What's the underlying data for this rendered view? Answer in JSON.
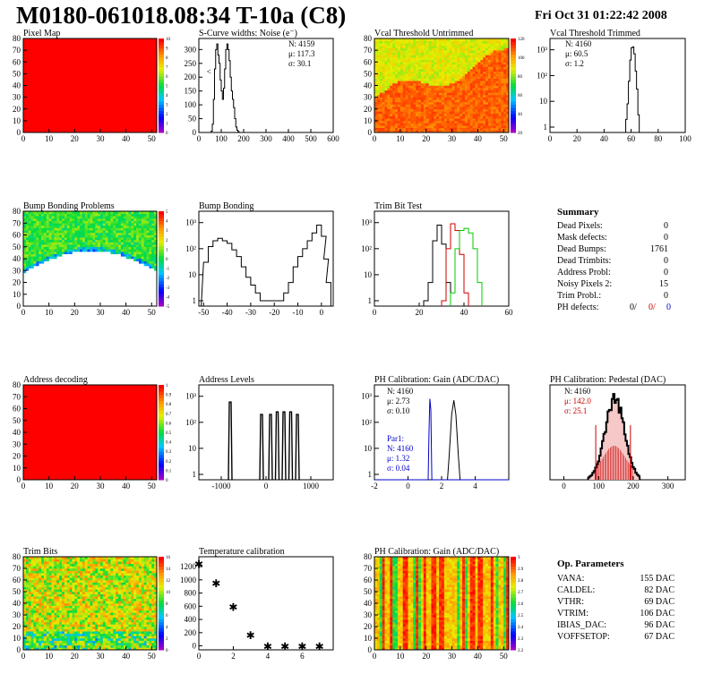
{
  "header": {
    "title": "M0180-061018.08:34 T-10a (C8)",
    "date": "Fri Oct 31 01:22:42 2008"
  },
  "summary": {
    "heading": "Summary",
    "rows": [
      {
        "label": "Dead Pixels:",
        "value": "0"
      },
      {
        "label": "Mask defects:",
        "value": "0"
      },
      {
        "label": "Dead Bumps:",
        "value": "1761"
      },
      {
        "label": "Dead Trimbits:",
        "value": "0"
      },
      {
        "label": "Address Probl:",
        "value": "0"
      },
      {
        "label": "Noisy Pixels 2:",
        "value": "15"
      },
      {
        "label": "Trim Probl.:",
        "value": "0"
      }
    ],
    "ph_label": "PH defects:",
    "ph_values": [
      "0/",
      "0/",
      "0"
    ],
    "ph_colors": [
      "#000000",
      "#cc0000",
      "#0000cc"
    ]
  },
  "params": {
    "heading": "Op. Parameters",
    "rows": [
      {
        "label": "VANA:",
        "value": "155 DAC"
      },
      {
        "label": "CALDEL:",
        "value": "82 DAC"
      },
      {
        "label": "VTHR:",
        "value": "69 DAC"
      },
      {
        "label": "VTRIM:",
        "value": "106 DAC"
      },
      {
        "label": "IBIAS_DAC:",
        "value": "96 DAC"
      },
      {
        "label": "VOFFSETOP:",
        "value": "67 DAC"
      }
    ]
  },
  "colors": {
    "red": "#ff0000",
    "green": "#00cc00",
    "blue": "#0000cc",
    "dark_red": "#cc0000"
  },
  "chart_data": [
    {
      "id": "pixelmap",
      "type": "heatmap",
      "title": "Pixel Map",
      "xticks": [
        "0",
        "10",
        "20",
        "30",
        "40",
        "50"
      ],
      "yticks": [
        "0",
        "10",
        "20",
        "30",
        "40",
        "50",
        "60",
        "70",
        "80"
      ],
      "xlim": [
        0,
        52
      ],
      "ylim": [
        0,
        80
      ],
      "fill": "uniform-red",
      "zticks": [
        "0",
        "1",
        "2",
        "3",
        "4",
        "5",
        "6",
        "7",
        "8",
        "9",
        "10"
      ]
    },
    {
      "id": "scurve",
      "type": "bar",
      "title": "S-Curve widths: Noise (e⁻)",
      "xticks": [
        "0",
        "100",
        "200",
        "300",
        "400",
        "500",
        "600"
      ],
      "yticks": [
        "0",
        "50",
        "100",
        "150",
        "200",
        "250",
        "300"
      ],
      "xlim": [
        0,
        600
      ],
      "ylim": [
        0,
        340
      ],
      "stats": [
        "N: 4159",
        "μ: 117.3",
        "σ: 30.1"
      ],
      "values": [
        [
          55,
          5
        ],
        [
          60,
          30
        ],
        [
          65,
          120
        ],
        [
          70,
          230
        ],
        [
          75,
          300
        ],
        [
          80,
          320
        ],
        [
          85,
          280
        ],
        [
          90,
          250
        ],
        [
          95,
          190
        ],
        [
          100,
          150
        ],
        [
          105,
          120
        ],
        [
          110,
          160
        ],
        [
          115,
          230
        ],
        [
          120,
          300
        ],
        [
          125,
          320
        ],
        [
          130,
          300
        ],
        [
          135,
          260
        ],
        [
          140,
          200
        ],
        [
          145,
          150
        ],
        [
          150,
          120
        ],
        [
          155,
          90
        ],
        [
          160,
          50
        ],
        [
          165,
          20
        ],
        [
          170,
          8
        ],
        [
          175,
          3
        ]
      ]
    },
    {
      "id": "vcal_untrimmed",
      "type": "heatmap",
      "title": "Vcal Threshold Untrimmed",
      "xticks": [
        "0",
        "10",
        "20",
        "30",
        "40",
        "50"
      ],
      "yticks": [
        "0",
        "10",
        "20",
        "30",
        "40",
        "50",
        "60",
        "70",
        "80"
      ],
      "xlim": [
        0,
        52
      ],
      "ylim": [
        0,
        80
      ],
      "zticks": [
        "20",
        "40",
        "60",
        "80",
        "100",
        "120"
      ]
    },
    {
      "id": "vcal_trimmed",
      "type": "bar",
      "title": "Vcal Threshold Trimmed",
      "log_y": true,
      "xticks": [
        "0",
        "20",
        "40",
        "60",
        "80",
        "100"
      ],
      "yticks": [
        "1",
        "10",
        "10²",
        "10³"
      ],
      "xlim": [
        0,
        100
      ],
      "stats": [
        "N: 4160",
        "μ: 60.5",
        "σ: 1.2"
      ],
      "values": [
        [
          56,
          2
        ],
        [
          57,
          8
        ],
        [
          58,
          60
        ],
        [
          59,
          400
        ],
        [
          60,
          1200
        ],
        [
          61,
          1300
        ],
        [
          62,
          700
        ],
        [
          63,
          150
        ],
        [
          64,
          30
        ],
        [
          65,
          3
        ]
      ]
    },
    {
      "id": "bump_problems",
      "type": "heatmap",
      "title": "Bump Bonding Problems",
      "xticks": [
        "0",
        "10",
        "20",
        "30",
        "40",
        "50"
      ],
      "yticks": [
        "0",
        "10",
        "20",
        "30",
        "40",
        "50",
        "60",
        "70",
        "80"
      ],
      "xlim": [
        0,
        52
      ],
      "ylim": [
        0,
        80
      ],
      "zticks": [
        "-5",
        "-4",
        "-3",
        "-2",
        "-1",
        "0",
        "1",
        "2",
        "3",
        "4",
        "5"
      ]
    },
    {
      "id": "bump_bonding",
      "type": "bar",
      "title": "Bump Bonding",
      "log_y": true,
      "xticks": [
        "-50",
        "-40",
        "-30",
        "-20",
        "-10",
        "0"
      ],
      "yticks": [
        "1",
        "10",
        "10²",
        "10³"
      ],
      "xlim": [
        -52,
        5
      ],
      "values": [
        [
          -50,
          30
        ],
        [
          -48,
          120
        ],
        [
          -46,
          200
        ],
        [
          -44,
          250
        ],
        [
          -42,
          200
        ],
        [
          -40,
          160
        ],
        [
          -38,
          90
        ],
        [
          -36,
          50
        ],
        [
          -34,
          20
        ],
        [
          -32,
          8
        ],
        [
          -30,
          4
        ],
        [
          -28,
          2
        ],
        [
          -26,
          1
        ],
        [
          -24,
          1
        ],
        [
          -22,
          1
        ],
        [
          -20,
          1
        ],
        [
          -18,
          1
        ],
        [
          -16,
          2
        ],
        [
          -14,
          5
        ],
        [
          -12,
          20
        ],
        [
          -10,
          50
        ],
        [
          -8,
          100
        ],
        [
          -6,
          200
        ],
        [
          -4,
          400
        ],
        [
          -2,
          800
        ],
        [
          0,
          300
        ],
        [
          1,
          40
        ],
        [
          2,
          5
        ]
      ]
    },
    {
      "id": "trimbit_test",
      "type": "line",
      "title": "Trim Bit Test",
      "log_y": true,
      "xticks": [
        "0",
        "20",
        "40",
        "60"
      ],
      "yticks": [
        "1",
        "10",
        "10²",
        "10³"
      ],
      "xlim": [
        0,
        60
      ],
      "series": [
        {
          "color": "#000000",
          "points": [
            [
              22,
              1
            ],
            [
              24,
              5
            ],
            [
              26,
              200
            ],
            [
              28,
              800
            ],
            [
              30,
              150
            ],
            [
              32,
              5
            ]
          ]
        },
        {
          "color": "#cc0000",
          "points": [
            [
              30,
              1
            ],
            [
              32,
              100
            ],
            [
              34,
              900
            ],
            [
              36,
              500
            ],
            [
              38,
              60
            ],
            [
              40,
              2
            ]
          ]
        },
        {
          "color": "#00cc00",
          "points": [
            [
              34,
              2
            ],
            [
              36,
              100
            ],
            [
              38,
              500
            ],
            [
              40,
              600
            ],
            [
              42,
              400
            ],
            [
              44,
              100
            ],
            [
              46,
              5
            ]
          ]
        }
      ]
    },
    {
      "id": "address_decoding",
      "type": "heatmap",
      "title": "Address decoding",
      "xticks": [
        "0",
        "10",
        "20",
        "30",
        "40",
        "50"
      ],
      "yticks": [
        "0",
        "10",
        "20",
        "30",
        "40",
        "50",
        "60",
        "70",
        "80"
      ],
      "xlim": [
        0,
        52
      ],
      "ylim": [
        0,
        80
      ],
      "fill": "uniform-red",
      "zticks": [
        "0",
        "0.1",
        "0.2",
        "0.3",
        "0.4",
        "0.5",
        "0.6",
        "0.7",
        "0.8",
        "0.9",
        "1"
      ]
    },
    {
      "id": "address_levels",
      "type": "bar",
      "title": "Address Levels",
      "log_y": true,
      "xticks": [
        "-1000",
        "0",
        "1000"
      ],
      "yticks": [
        "1",
        "10",
        "10²",
        "10³"
      ],
      "xlim": [
        -1500,
        1500
      ],
      "values": [
        [
          -800,
          600
        ],
        [
          -100,
          200
        ],
        [
          100,
          200
        ],
        [
          250,
          250
        ],
        [
          400,
          250
        ],
        [
          550,
          250
        ],
        [
          700,
          200
        ]
      ]
    },
    {
      "id": "ph_gain",
      "type": "bar",
      "title": "PH Calibration: Gain (ADC/DAC)",
      "log_y": true,
      "xticks": [
        "-2",
        "0",
        "2",
        "4"
      ],
      "yticks": [
        "1",
        "10",
        "10²",
        "10³"
      ],
      "xlim": [
        -2,
        6
      ],
      "stats": [
        "N: 4160",
        "μ: 2.73",
        "σ: 0.10"
      ],
      "stats2": [
        "Par1:",
        "N: 4160",
        "μ: 1.32",
        "σ: 0.04"
      ]
    },
    {
      "id": "ph_pedestal",
      "type": "bar",
      "title": "PH Calibration: Pedestal (DAC)",
      "xticks": [
        "0",
        "100",
        "200",
        "300"
      ],
      "xlim": [
        -40,
        350
      ],
      "stats": [
        "N: 4160",
        "μ: 142.0",
        "σ: 25.1"
      ]
    },
    {
      "id": "trimbits",
      "type": "heatmap",
      "title": "Trim Bits",
      "xticks": [
        "0",
        "10",
        "20",
        "30",
        "40",
        "50"
      ],
      "yticks": [
        "0",
        "10",
        "20",
        "30",
        "40",
        "50",
        "60",
        "70",
        "80"
      ],
      "xlim": [
        0,
        52
      ],
      "ylim": [
        0,
        80
      ],
      "zticks": [
        "0",
        "2",
        "4",
        "6",
        "8",
        "10",
        "12",
        "14",
        "16"
      ]
    },
    {
      "id": "temperature",
      "type": "scatter",
      "title": "Temperature calibration",
      "xticks": [
        "0",
        "2",
        "4",
        "6"
      ],
      "yticks": [
        "0",
        "200",
        "400",
        "600",
        "800",
        "1000",
        "1200"
      ],
      "xlim": [
        0,
        7.8
      ],
      "ylim": [
        -60,
        1350
      ],
      "x": [
        0,
        1,
        2,
        3,
        4,
        5,
        6,
        7
      ],
      "y": [
        1250,
        960,
        600,
        170,
        0,
        0,
        0,
        0
      ]
    },
    {
      "id": "ph_gain_map",
      "type": "heatmap",
      "title": "PH Calibration: Gain (ADC/DAC)",
      "xticks": [
        "0",
        "10",
        "20",
        "30",
        "40",
        "50"
      ],
      "yticks": [
        "0",
        "10",
        "20",
        "30",
        "40",
        "50",
        "60",
        "70",
        "80"
      ],
      "xlim": [
        0,
        52
      ],
      "ylim": [
        0,
        80
      ],
      "zticks": [
        "2.2",
        "2.3",
        "2.4",
        "2.5",
        "2.6",
        "2.7",
        "2.8",
        "2.9",
        "3"
      ]
    }
  ]
}
